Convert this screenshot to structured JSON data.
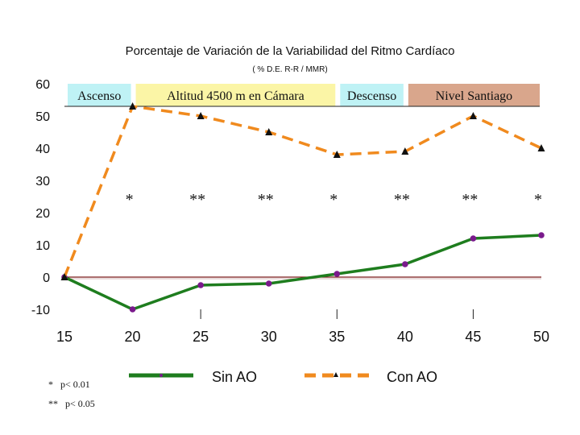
{
  "chart_data": {
    "type": "line",
    "title": "Porcentaje de Variación de la Variabilidad del Ritmo Cardíaco",
    "subtitle": "( % D.E. R-R / MMR)",
    "xlabel": "",
    "ylabel": "",
    "x": [
      15,
      20,
      25,
      30,
      35,
      40,
      45,
      50
    ],
    "xlim": [
      15,
      50
    ],
    "ylim": [
      -10,
      60
    ],
    "x_ticks": [
      "15",
      "20",
      "25",
      "30",
      "35",
      "40",
      "45",
      "50"
    ],
    "y_ticks": [
      "60",
      "50",
      "40",
      "30",
      "20",
      "10",
      "0",
      "-10"
    ],
    "grid": false,
    "series": [
      {
        "name": "Sin AO",
        "color": "#1e7d1e",
        "marker_color": "#7a1a8c",
        "marker": "circle",
        "style": "solid",
        "values": [
          0,
          -10,
          -2.5,
          -2,
          1,
          4,
          12,
          13
        ]
      },
      {
        "name": "Con AO",
        "color": "#f08a1e",
        "marker_color": "#111111",
        "marker": "triangle",
        "style": "dashed",
        "values": [
          0,
          53,
          50,
          45,
          38,
          39,
          50,
          40
        ]
      }
    ],
    "phases": [
      {
        "label": "Ascenso",
        "x_start": 15,
        "x_end": 20,
        "color": "#bff2f5"
      },
      {
        "label": "Altitud 4500 m en Cámara",
        "x_start": 20,
        "x_end": 35,
        "color": "#fbf5a6"
      },
      {
        "label": "Descenso",
        "x_start": 35,
        "x_end": 40,
        "color": "#bff2f5"
      },
      {
        "label": "Nivel Santiago",
        "x_start": 40,
        "x_end": 50,
        "color": "#d9a68c"
      }
    ],
    "significance_marks": [
      {
        "x": 20,
        "text": "*"
      },
      {
        "x": 25,
        "text": "**"
      },
      {
        "x": 30,
        "text": "**"
      },
      {
        "x": 35,
        "text": "*"
      },
      {
        "x": 40,
        "text": "**"
      },
      {
        "x": 45,
        "text": "**"
      },
      {
        "x": 50,
        "text": "*"
      }
    ],
    "footnotes": [
      "*   p< 0.01",
      "**   p< 0.05"
    ],
    "legend": {
      "placement": "bottom",
      "entries": [
        "Sin AO",
        "Con AO"
      ]
    }
  }
}
